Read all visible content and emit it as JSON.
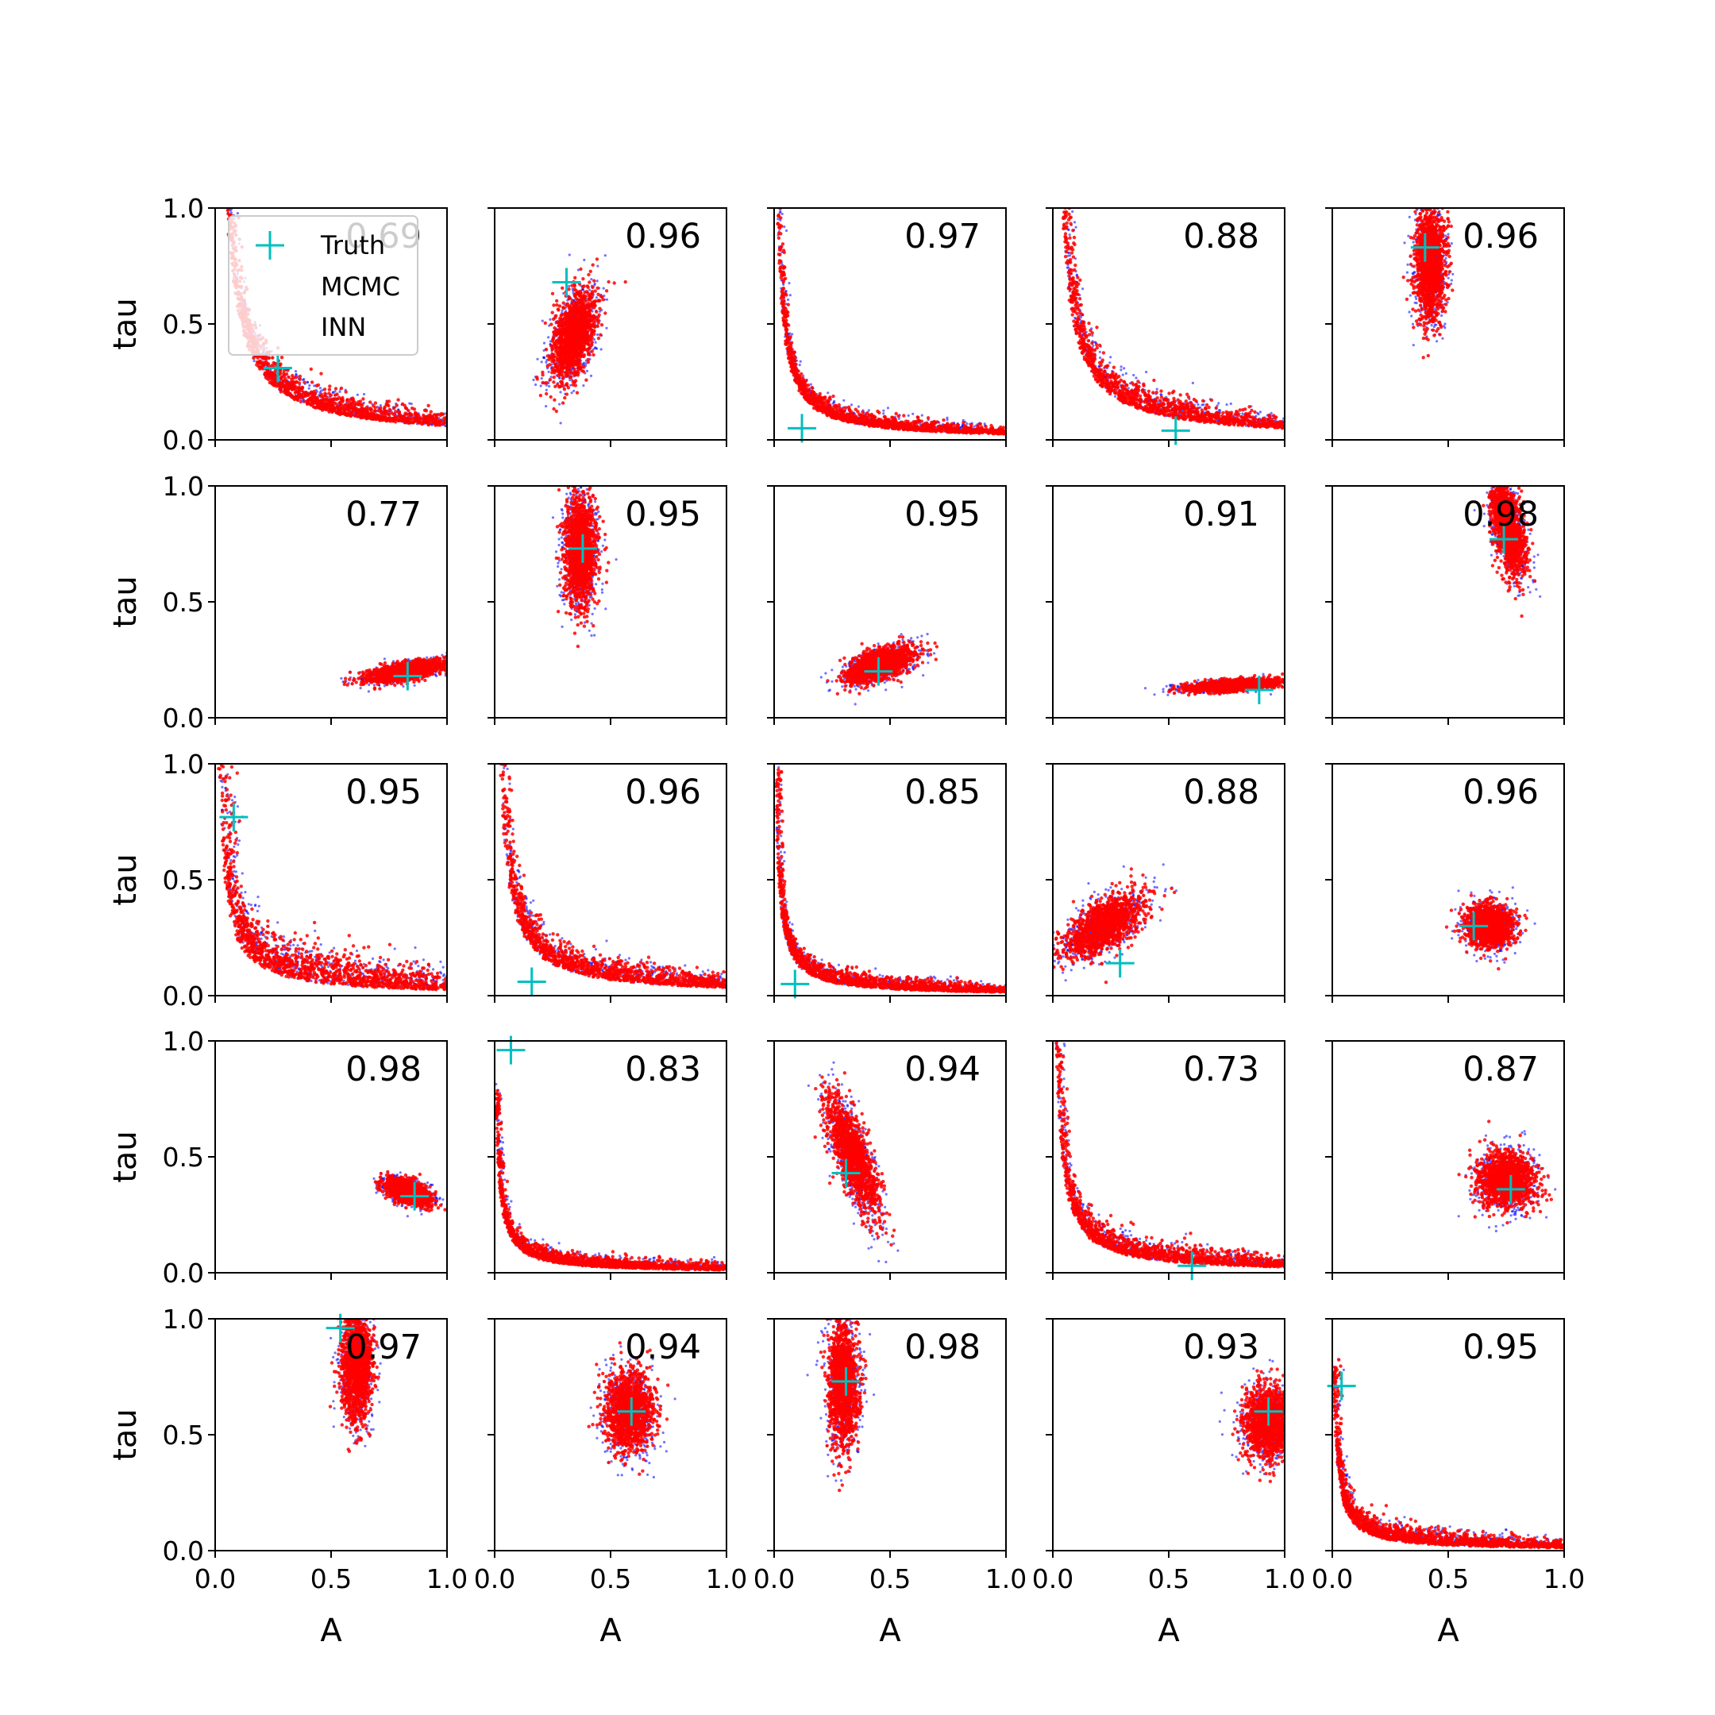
{
  "colors": {
    "truth": "#00bfbf",
    "mcmc": "#0000ff",
    "inn": "#ff0000",
    "axes": "#000000",
    "background": "#ffffff"
  },
  "legend": {
    "placement": "upper-left of first panel",
    "entries": [
      "Truth",
      "MCMC",
      "INN"
    ]
  },
  "chart_data": {
    "type": "scatter",
    "layout": "5x5 grid of scatter panels",
    "xlabel": "A",
    "ylabel": "tau",
    "xlim": [
      0,
      1
    ],
    "ylim": [
      0,
      1
    ],
    "xticks": [
      "0.0",
      "0.5",
      "1.0"
    ],
    "yticks": [
      "0.0",
      "0.5",
      "1.0"
    ],
    "grid": false,
    "series": [
      {
        "name": "MCMC",
        "color": "#0000ff"
      },
      {
        "name": "INN",
        "color": "#ff0000"
      },
      {
        "name": "Truth",
        "color": "#00bfbf"
      }
    ],
    "panels": [
      {
        "score": "0.69",
        "truth": [
          0.27,
          0.31
        ],
        "shape": {
          "kind": "hyperbola",
          "c": 0.06,
          "w": 0.06
        }
      },
      {
        "score": "0.96",
        "truth": [
          0.31,
          0.68
        ],
        "shape": {
          "kind": "ellipse",
          "cx": 0.34,
          "cy": 0.45,
          "rx": 0.08,
          "ry": 0.2,
          "rot": -15
        }
      },
      {
        "score": "0.97",
        "truth": [
          0.12,
          0.05
        ],
        "shape": {
          "kind": "hyperbola",
          "c": 0.025,
          "w": 0.035
        }
      },
      {
        "score": "0.88",
        "truth": [
          0.53,
          0.04
        ],
        "shape": {
          "kind": "hyperbola",
          "c": 0.05,
          "w": 0.06
        }
      },
      {
        "score": "0.96",
        "truth": [
          0.4,
          0.83
        ],
        "shape": {
          "kind": "ellipse",
          "cx": 0.42,
          "cy": 0.76,
          "rx": 0.065,
          "ry": 0.24,
          "rot": 0
        }
      },
      {
        "score": "0.77",
        "truth": [
          0.83,
          0.18
        ],
        "shape": {
          "kind": "ellipse",
          "cx": 0.82,
          "cy": 0.2,
          "rx": 0.16,
          "ry": 0.035,
          "rot": 10
        }
      },
      {
        "score": "0.95",
        "truth": [
          0.38,
          0.73
        ],
        "shape": {
          "kind": "ellipse",
          "cx": 0.37,
          "cy": 0.72,
          "rx": 0.07,
          "ry": 0.24,
          "rot": 0
        }
      },
      {
        "score": "0.95",
        "truth": [
          0.45,
          0.2
        ],
        "shape": {
          "kind": "ellipse",
          "cx": 0.46,
          "cy": 0.23,
          "rx": 0.15,
          "ry": 0.06,
          "rot": 20
        }
      },
      {
        "score": "0.91",
        "truth": [
          0.89,
          0.12
        ],
        "shape": {
          "kind": "ellipse",
          "cx": 0.77,
          "cy": 0.14,
          "rx": 0.2,
          "ry": 0.022,
          "rot": 4
        }
      },
      {
        "score": "0.98",
        "truth": [
          0.74,
          0.77
        ],
        "shape": {
          "kind": "ellipse",
          "cx": 0.76,
          "cy": 0.82,
          "rx": 0.06,
          "ry": 0.2,
          "rot": 12
        }
      },
      {
        "score": "0.95",
        "truth": [
          0.08,
          0.77
        ],
        "shape": {
          "kind": "hyperbola",
          "c": 0.025,
          "w": 0.09
        }
      },
      {
        "score": "0.96",
        "truth": [
          0.16,
          0.06
        ],
        "shape": {
          "kind": "hyperbola",
          "c": 0.035,
          "w": 0.06
        }
      },
      {
        "score": "0.85",
        "truth": [
          0.09,
          0.05
        ],
        "shape": {
          "kind": "hyperbola",
          "c": 0.015,
          "w": 0.035
        }
      },
      {
        "score": "0.88",
        "truth": [
          0.29,
          0.14
        ],
        "shape": {
          "kind": "ellipse",
          "cx": 0.22,
          "cy": 0.3,
          "rx": 0.2,
          "ry": 0.09,
          "rot": 35
        }
      },
      {
        "score": "0.96",
        "truth": [
          0.61,
          0.3
        ],
        "shape": {
          "kind": "ellipse",
          "cx": 0.68,
          "cy": 0.3,
          "rx": 0.1,
          "ry": 0.09,
          "rot": -15
        }
      },
      {
        "score": "0.98",
        "truth": [
          0.86,
          0.33
        ],
        "shape": {
          "kind": "ellipse",
          "cx": 0.83,
          "cy": 0.35,
          "rx": 0.1,
          "ry": 0.045,
          "rot": -20
        }
      },
      {
        "score": "0.83",
        "truth": [
          0.07,
          0.96
        ],
        "shape": {
          "kind": "hyperbola",
          "c": 0.012,
          "w": 0.03
        }
      },
      {
        "score": "0.94",
        "truth": [
          0.31,
          0.43
        ],
        "shape": {
          "kind": "ellipse",
          "cx": 0.34,
          "cy": 0.5,
          "rx": 0.07,
          "ry": 0.26,
          "rot": 20
        }
      },
      {
        "score": "0.73",
        "truth": [
          0.6,
          0.03
        ],
        "shape": {
          "kind": "hyperbola",
          "c": 0.025,
          "w": 0.05
        }
      },
      {
        "score": "0.87",
        "truth": [
          0.77,
          0.36
        ],
        "shape": {
          "kind": "ellipse",
          "cx": 0.75,
          "cy": 0.4,
          "rx": 0.12,
          "ry": 0.12,
          "rot": 0
        }
      },
      {
        "score": "0.97",
        "truth": [
          0.54,
          0.96
        ],
        "shape": {
          "kind": "ellipse",
          "cx": 0.61,
          "cy": 0.8,
          "rx": 0.065,
          "ry": 0.24,
          "rot": 0
        }
      },
      {
        "score": "0.94",
        "truth": [
          0.59,
          0.6
        ],
        "shape": {
          "kind": "ellipse",
          "cx": 0.58,
          "cy": 0.6,
          "rx": 0.1,
          "ry": 0.17,
          "rot": 0
        }
      },
      {
        "score": "0.98",
        "truth": [
          0.31,
          0.73
        ],
        "shape": {
          "kind": "ellipse",
          "cx": 0.3,
          "cy": 0.72,
          "rx": 0.065,
          "ry": 0.27,
          "rot": 0
        }
      },
      {
        "score": "0.93",
        "truth": [
          0.93,
          0.6
        ],
        "shape": {
          "kind": "ellipse",
          "cx": 0.93,
          "cy": 0.55,
          "rx": 0.1,
          "ry": 0.15,
          "rot": 0
        }
      },
      {
        "score": "0.95",
        "truth": [
          0.04,
          0.71
        ],
        "shape": {
          "kind": "hyperbola",
          "c": 0.012,
          "w": 0.04
        }
      }
    ]
  }
}
